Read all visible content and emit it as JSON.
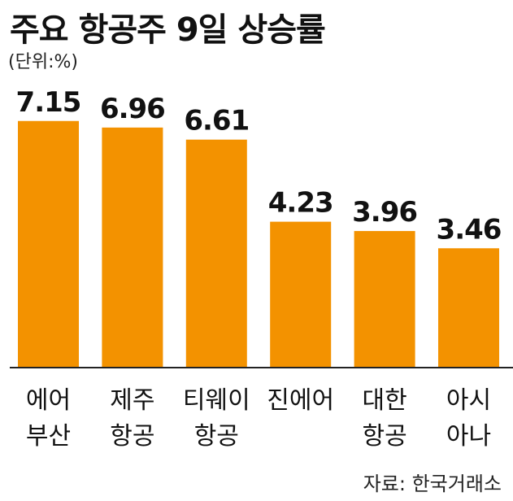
{
  "title": "주요 항공주 9일 상승률",
  "unit_label": "(단위:%)",
  "source": "자료: 한국거래소",
  "colors": {
    "bar": "#F39200",
    "axis": "#222222",
    "text": "#111111"
  },
  "chart_data": {
    "type": "bar",
    "title": "주요 항공주 9일 상승률",
    "categories": [
      [
        "에어",
        "부산"
      ],
      [
        "제주",
        "항공"
      ],
      [
        "티웨이",
        "항공"
      ],
      [
        "진에어"
      ],
      [
        "대한",
        "항공"
      ],
      [
        "아시",
        "아나"
      ]
    ],
    "values": [
      7.15,
      6.96,
      6.61,
      4.23,
      3.96,
      3.46
    ],
    "value_labels": [
      "7.15",
      "6.96",
      "6.61",
      "4.23",
      "3.96",
      "3.46"
    ],
    "ylabel": "(단위:%)",
    "ylim": [
      0,
      8.3
    ],
    "grid": false,
    "legend": "none"
  }
}
